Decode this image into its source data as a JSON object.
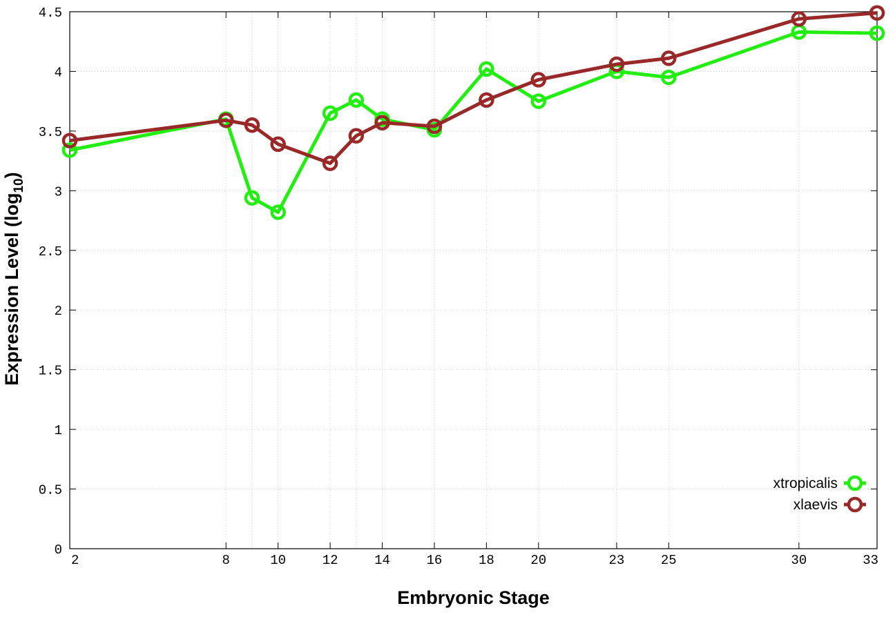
{
  "chart_data": {
    "type": "line",
    "title": "",
    "xlabel": "Embryonic Stage",
    "ylabel": "Expression Level (log",
    "ylabel_subscript": "10",
    "ylabel_suffix": ")",
    "xlim": [
      2,
      33
    ],
    "ylim": [
      0,
      4.5
    ],
    "x_ticks": [
      2,
      8,
      10,
      12,
      14,
      16,
      18,
      20,
      23,
      25,
      30,
      33
    ],
    "x_tick_labels": [
      "2",
      "8",
      "10",
      "12",
      "14",
      "16",
      "18",
      "20",
      "23",
      "25",
      "30",
      "33"
    ],
    "x_minor_gridlines": [
      9,
      13
    ],
    "y_ticks": [
      0,
      0.5,
      1,
      1.5,
      2,
      2.5,
      3,
      3.5,
      4,
      4.5
    ],
    "y_tick_labels": [
      "0",
      "0.5",
      "1",
      "1.5",
      "2",
      "2.5",
      "3",
      "3.5",
      "4",
      "4.5"
    ],
    "grid": true,
    "legend_position": "bottom-right",
    "series": [
      {
        "name": "xtropicalis",
        "color": "#22ee11",
        "points": [
          {
            "x": 2,
            "y": 3.34
          },
          {
            "x": 8,
            "y": 3.6
          },
          {
            "x": 9,
            "y": 2.94
          },
          {
            "x": 10,
            "y": 2.82
          },
          {
            "x": 12,
            "y": 3.65
          },
          {
            "x": 13,
            "y": 3.76
          },
          {
            "x": 14,
            "y": 3.6
          },
          {
            "x": 16,
            "y": 3.51
          },
          {
            "x": 18,
            "y": 4.02
          },
          {
            "x": 20,
            "y": 3.75
          },
          {
            "x": 23,
            "y": 4.0
          },
          {
            "x": 25,
            "y": 3.95
          },
          {
            "x": 30,
            "y": 4.33
          },
          {
            "x": 33,
            "y": 4.32
          }
        ]
      },
      {
        "name": "xlaevis",
        "color": "#992929",
        "points": [
          {
            "x": 2,
            "y": 3.42
          },
          {
            "x": 8,
            "y": 3.59
          },
          {
            "x": 9,
            "y": 3.55
          },
          {
            "x": 10,
            "y": 3.39
          },
          {
            "x": 12,
            "y": 3.23
          },
          {
            "x": 13,
            "y": 3.46
          },
          {
            "x": 14,
            "y": 3.57
          },
          {
            "x": 16,
            "y": 3.54
          },
          {
            "x": 18,
            "y": 3.76
          },
          {
            "x": 20,
            "y": 3.93
          },
          {
            "x": 23,
            "y": 4.06
          },
          {
            "x": 25,
            "y": 4.11
          },
          {
            "x": 30,
            "y": 4.44
          },
          {
            "x": 33,
            "y": 4.49
          }
        ]
      }
    ]
  }
}
